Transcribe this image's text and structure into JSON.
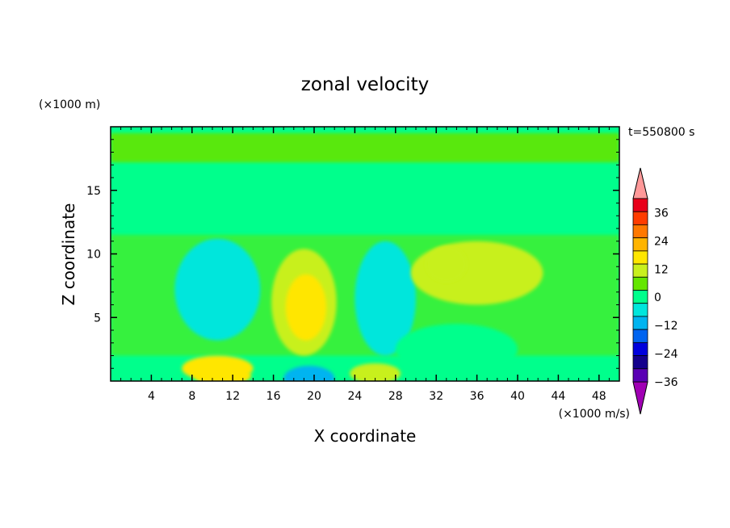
{
  "chart_data": {
    "type": "heatmap",
    "title": "zonal velocity",
    "xlabel": "X coordinate",
    "ylabel": "Z coordinate",
    "x_scale_note": "(×1000 m/s)",
    "y_scale_note": "(×1000 m)",
    "time_label": "t=550800 s",
    "xlim": [
      0,
      50
    ],
    "ylim": [
      0,
      20
    ],
    "x_ticks": [
      4,
      8,
      12,
      16,
      20,
      24,
      28,
      32,
      36,
      40,
      44,
      48
    ],
    "y_ticks": [
      5,
      10,
      15
    ],
    "colorbar": {
      "levels": [
        -42,
        -36,
        -30,
        -24,
        -18,
        -12,
        -6,
        0,
        6,
        12,
        18,
        24,
        30,
        36,
        42
      ],
      "tick_labels": [
        36,
        24,
        12,
        0,
        -12,
        -24,
        -36
      ],
      "colors": [
        "#ff9999",
        "#e8001a",
        "#ff3c00",
        "#ff7800",
        "#ffb400",
        "#ffe600",
        "#c8f01e",
        "#64e600",
        "#00ff8c",
        "#00e6dc",
        "#00b4f0",
        "#0064f0",
        "#0000dc",
        "#14008c",
        "#5a00b4",
        "#a000b4"
      ],
      "extend": "both"
    },
    "field_features": [
      {
        "x": 19,
        "z": 6.2,
        "rx": 3.2,
        "rz": 4.2,
        "value": 10
      },
      {
        "x": 19.2,
        "z": 5.8,
        "rx": 2.0,
        "rz": 2.6,
        "value": 14
      },
      {
        "x": 19.5,
        "z": 0.2,
        "rx": 2.5,
        "rz": 1.0,
        "value": -14
      },
      {
        "x": 10.5,
        "z": 1.0,
        "rx": 3.5,
        "rz": 1.0,
        "value": 12
      },
      {
        "x": 11,
        "z": 0.4,
        "rx": 2.8,
        "rz": 0.7,
        "value": 16
      },
      {
        "x": 10.5,
        "z": 7.2,
        "rx": 4.2,
        "rz": 4.0,
        "value": -7
      },
      {
        "x": 10.5,
        "z": 7.0,
        "rx": 2.5,
        "rz": 2.5,
        "value": -10
      },
      {
        "x": 27,
        "z": 6.5,
        "rx": 3.0,
        "rz": 4.5,
        "value": -7
      },
      {
        "x": 34,
        "z": 2.5,
        "rx": 6.0,
        "rz": 2.0,
        "value": -5
      },
      {
        "x": 36,
        "z": 8.5,
        "rx": 6.5,
        "rz": 2.5,
        "value": 8
      },
      {
        "x": 33,
        "z": 9.2,
        "rx": 2.0,
        "rz": 1.4,
        "value": 10
      },
      {
        "x": 26,
        "z": 0.6,
        "rx": 2.5,
        "rz": 0.8,
        "value": 9
      }
    ]
  }
}
